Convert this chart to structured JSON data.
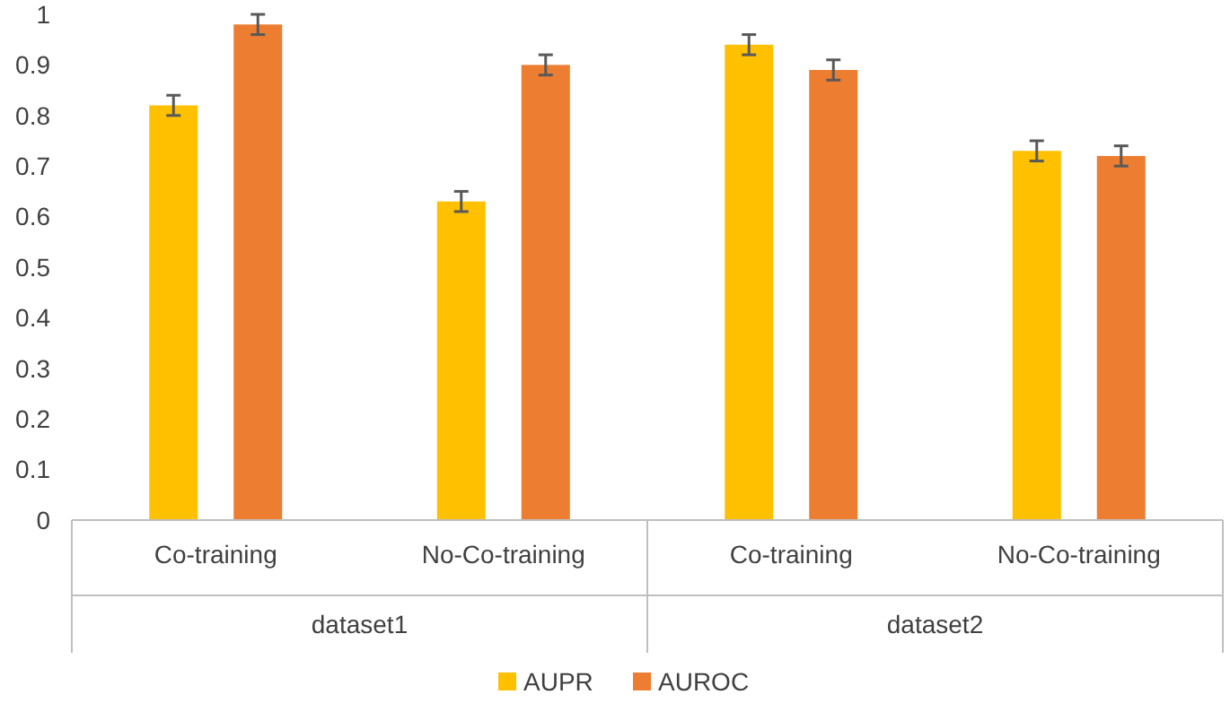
{
  "chart_data": {
    "type": "bar",
    "categories": [
      "Co-training",
      "No-Co-training",
      "Co-training",
      "No-Co-training"
    ],
    "series": [
      {
        "name": "AUPR",
        "color": "#ffc000",
        "values": [
          0.82,
          0.63,
          0.94,
          0.73
        ],
        "errors": [
          0.02,
          0.02,
          0.02,
          0.02
        ]
      },
      {
        "name": "AUROC",
        "color": "#ed7d31",
        "values": [
          0.98,
          0.9,
          0.89,
          0.72
        ],
        "errors": [
          0.02,
          0.02,
          0.02,
          0.02
        ]
      }
    ],
    "ylim": [
      0,
      1
    ],
    "yticks": [
      0,
      0.1,
      0.2,
      0.3,
      0.4,
      0.5,
      0.6,
      0.7,
      0.8,
      0.9,
      1
    ],
    "grid": false,
    "legend": "bottom",
    "annotations": [
      "dataset1",
      "dataset2"
    ]
  }
}
